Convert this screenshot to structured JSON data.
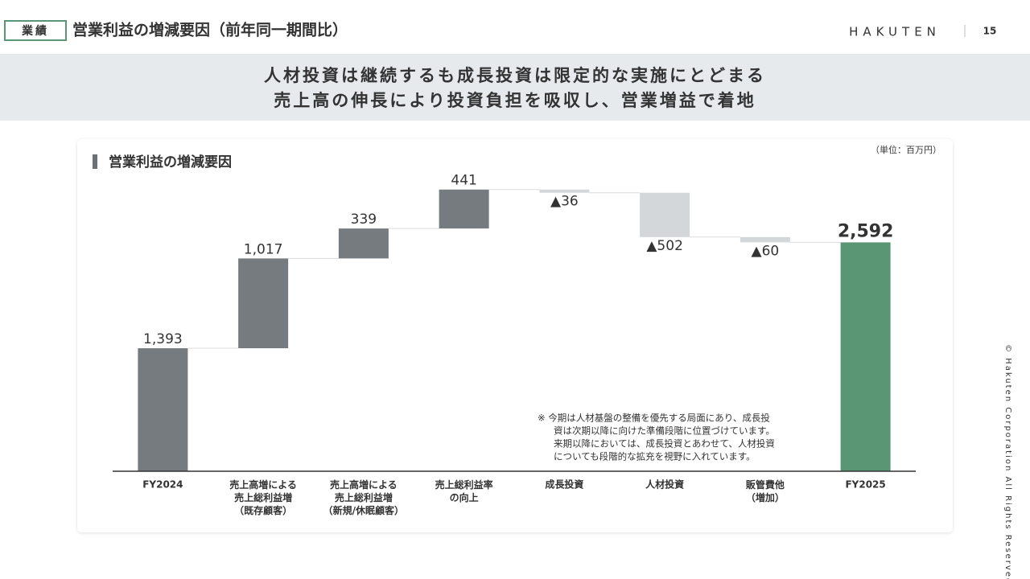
{
  "header": {
    "badge": "業績",
    "title": "営業利益の増減要因（前年同一期間比）",
    "logo": "HAKUTEN",
    "page": "15"
  },
  "banner": [
    "人材投資は継続するも成長投資は限定的な実施にとどまる",
    "売上高の伸長により投資負担を吸収し、営業増益で着地"
  ],
  "copyright": "© Hakuten Corporation All Rights Reserved.",
  "chart_data": {
    "type": "waterfall",
    "title": "営業利益の増減要因",
    "unit": "（単位：百万円）",
    "categories": [
      "FY2024",
      "売上高増による\n売上総利益増\n（既存顧客）",
      "売上高増による\n売上総利益増\n（新規/休眠顧客）",
      "売上総利益率\nの向上",
      "成長投資",
      "人材投資",
      "販管費他\n（増加）",
      "FY2025"
    ],
    "values": [
      1393,
      1017,
      339,
      441,
      -36,
      -502,
      -60,
      2592
    ],
    "value_labels": [
      "1,393",
      "1,017",
      "339",
      "441",
      "▲36",
      "▲502",
      "▲60",
      "2,592"
    ],
    "measures": [
      "absolute",
      "relative",
      "relative",
      "relative",
      "relative",
      "relative",
      "relative",
      "total"
    ],
    "colors": {
      "absolute": "#767b7f",
      "increase": "#767b7f",
      "decrease": "#d3d7da",
      "total": "#5a9574"
    },
    "note": [
      "※ 今期は人材基盤の整備を優先する局面にあり、成長投",
      "資は次期以降に向けた準備段階に位置づけています。",
      "来期以降においては、成長投資とあわせて、人材投資",
      "についても段階的な拡充を視野に入れています。"
    ]
  }
}
